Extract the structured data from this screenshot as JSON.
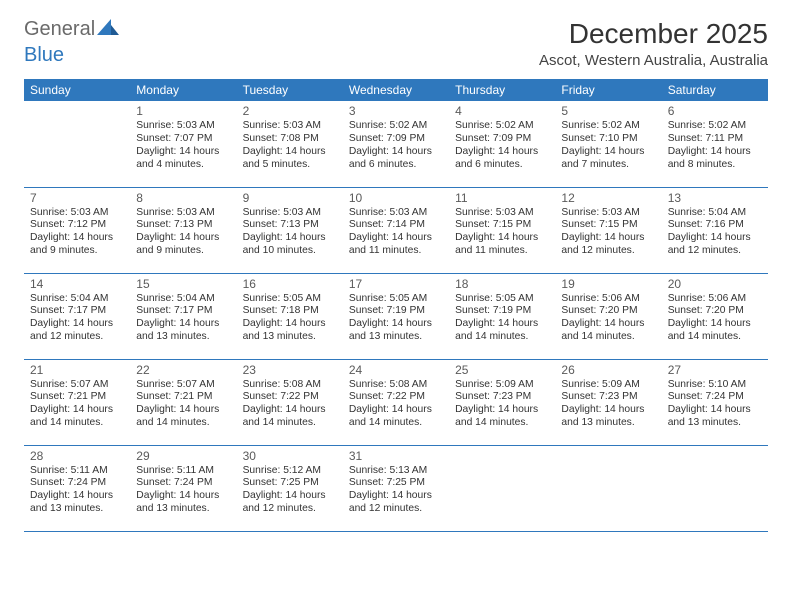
{
  "brand": {
    "part1": "General",
    "part2": "Blue"
  },
  "title": "December 2025",
  "location": "Ascot, Western Australia, Australia",
  "header_bg": "#2f78bd",
  "header_fg": "#ffffff",
  "row_border": "#2f78bd",
  "days": [
    "Sunday",
    "Monday",
    "Tuesday",
    "Wednesday",
    "Thursday",
    "Friday",
    "Saturday"
  ],
  "weeks": [
    [
      null,
      {
        "n": "1",
        "sr": "5:03 AM",
        "ss": "7:07 PM",
        "dl": "14 hours and 4 minutes."
      },
      {
        "n": "2",
        "sr": "5:03 AM",
        "ss": "7:08 PM",
        "dl": "14 hours and 5 minutes."
      },
      {
        "n": "3",
        "sr": "5:02 AM",
        "ss": "7:09 PM",
        "dl": "14 hours and 6 minutes."
      },
      {
        "n": "4",
        "sr": "5:02 AM",
        "ss": "7:09 PM",
        "dl": "14 hours and 6 minutes."
      },
      {
        "n": "5",
        "sr": "5:02 AM",
        "ss": "7:10 PM",
        "dl": "14 hours and 7 minutes."
      },
      {
        "n": "6",
        "sr": "5:02 AM",
        "ss": "7:11 PM",
        "dl": "14 hours and 8 minutes."
      }
    ],
    [
      {
        "n": "7",
        "sr": "5:03 AM",
        "ss": "7:12 PM",
        "dl": "14 hours and 9 minutes."
      },
      {
        "n": "8",
        "sr": "5:03 AM",
        "ss": "7:13 PM",
        "dl": "14 hours and 9 minutes."
      },
      {
        "n": "9",
        "sr": "5:03 AM",
        "ss": "7:13 PM",
        "dl": "14 hours and 10 minutes."
      },
      {
        "n": "10",
        "sr": "5:03 AM",
        "ss": "7:14 PM",
        "dl": "14 hours and 11 minutes."
      },
      {
        "n": "11",
        "sr": "5:03 AM",
        "ss": "7:15 PM",
        "dl": "14 hours and 11 minutes."
      },
      {
        "n": "12",
        "sr": "5:03 AM",
        "ss": "7:15 PM",
        "dl": "14 hours and 12 minutes."
      },
      {
        "n": "13",
        "sr": "5:04 AM",
        "ss": "7:16 PM",
        "dl": "14 hours and 12 minutes."
      }
    ],
    [
      {
        "n": "14",
        "sr": "5:04 AM",
        "ss": "7:17 PM",
        "dl": "14 hours and 12 minutes."
      },
      {
        "n": "15",
        "sr": "5:04 AM",
        "ss": "7:17 PM",
        "dl": "14 hours and 13 minutes."
      },
      {
        "n": "16",
        "sr": "5:05 AM",
        "ss": "7:18 PM",
        "dl": "14 hours and 13 minutes."
      },
      {
        "n": "17",
        "sr": "5:05 AM",
        "ss": "7:19 PM",
        "dl": "14 hours and 13 minutes."
      },
      {
        "n": "18",
        "sr": "5:05 AM",
        "ss": "7:19 PM",
        "dl": "14 hours and 14 minutes."
      },
      {
        "n": "19",
        "sr": "5:06 AM",
        "ss": "7:20 PM",
        "dl": "14 hours and 14 minutes."
      },
      {
        "n": "20",
        "sr": "5:06 AM",
        "ss": "7:20 PM",
        "dl": "14 hours and 14 minutes."
      }
    ],
    [
      {
        "n": "21",
        "sr": "5:07 AM",
        "ss": "7:21 PM",
        "dl": "14 hours and 14 minutes."
      },
      {
        "n": "22",
        "sr": "5:07 AM",
        "ss": "7:21 PM",
        "dl": "14 hours and 14 minutes."
      },
      {
        "n": "23",
        "sr": "5:08 AM",
        "ss": "7:22 PM",
        "dl": "14 hours and 14 minutes."
      },
      {
        "n": "24",
        "sr": "5:08 AM",
        "ss": "7:22 PM",
        "dl": "14 hours and 14 minutes."
      },
      {
        "n": "25",
        "sr": "5:09 AM",
        "ss": "7:23 PM",
        "dl": "14 hours and 14 minutes."
      },
      {
        "n": "26",
        "sr": "5:09 AM",
        "ss": "7:23 PM",
        "dl": "14 hours and 13 minutes."
      },
      {
        "n": "27",
        "sr": "5:10 AM",
        "ss": "7:24 PM",
        "dl": "14 hours and 13 minutes."
      }
    ],
    [
      {
        "n": "28",
        "sr": "5:11 AM",
        "ss": "7:24 PM",
        "dl": "14 hours and 13 minutes."
      },
      {
        "n": "29",
        "sr": "5:11 AM",
        "ss": "7:24 PM",
        "dl": "14 hours and 13 minutes."
      },
      {
        "n": "30",
        "sr": "5:12 AM",
        "ss": "7:25 PM",
        "dl": "14 hours and 12 minutes."
      },
      {
        "n": "31",
        "sr": "5:13 AM",
        "ss": "7:25 PM",
        "dl": "14 hours and 12 minutes."
      },
      null,
      null,
      null
    ]
  ],
  "labels": {
    "sunrise": "Sunrise:",
    "sunset": "Sunset:",
    "daylight": "Daylight:"
  }
}
